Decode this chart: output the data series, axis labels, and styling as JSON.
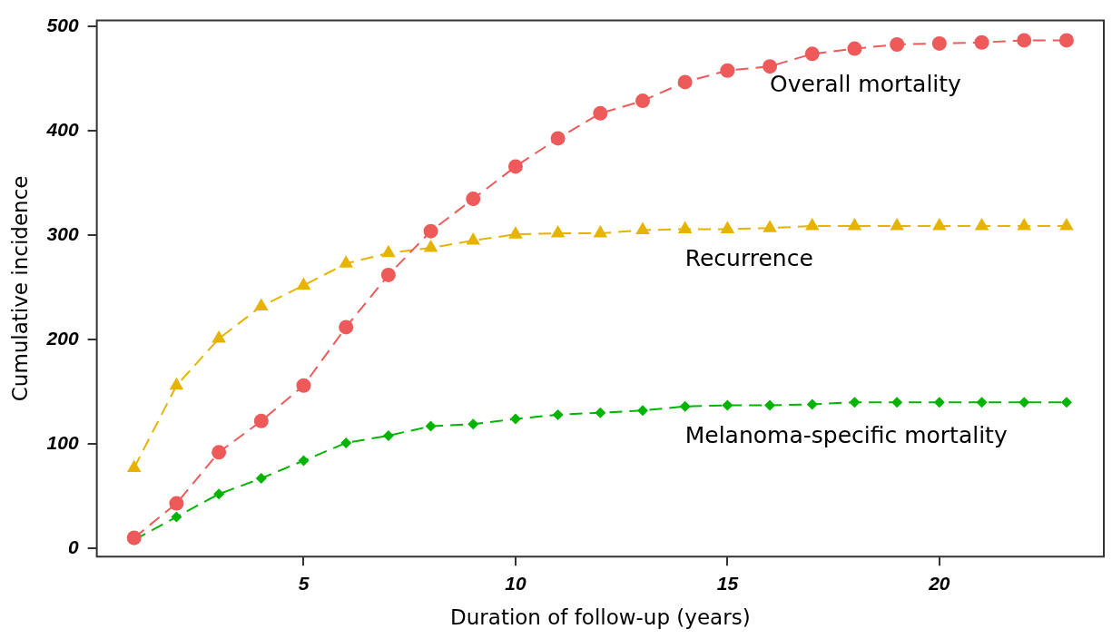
{
  "chart_data": {
    "type": "line",
    "xlabel": "Duration of follow-up (years)",
    "ylabel": "Cumulative incidence",
    "x": [
      1,
      2,
      3,
      4,
      5,
      6,
      7,
      8,
      9,
      10,
      11,
      12,
      13,
      14,
      15,
      16,
      17,
      18,
      19,
      20,
      21,
      22,
      23
    ],
    "xlim": [
      0.12,
      23.88
    ],
    "xticks": [
      5,
      10,
      15,
      20
    ],
    "ylim": [
      -8,
      506
    ],
    "yticks": [
      0,
      100,
      200,
      300,
      400,
      500
    ],
    "grid": false,
    "legend": false,
    "line_style": "dashed",
    "series": [
      {
        "name": "Overall mortality",
        "color": "#ee5a5a",
        "marker": "circle",
        "values": [
          10,
          43,
          92,
          122,
          156,
          212,
          262,
          304,
          335,
          366,
          393,
          417,
          429,
          447,
          458,
          462,
          474,
          479,
          483,
          484,
          485,
          487,
          487
        ]
      },
      {
        "name": "Recurrence",
        "color": "#e6b400",
        "marker": "triangle",
        "values": [
          77,
          156,
          201,
          232,
          252,
          273,
          283,
          288,
          295,
          301,
          302,
          302,
          305,
          306,
          306,
          307,
          309,
          309,
          309,
          309,
          309,
          309,
          309
        ]
      },
      {
        "name": "Melanoma-specific mortality",
        "color": "#00b400",
        "marker": "diamond",
        "values": [
          8,
          30,
          52,
          67,
          84,
          101,
          108,
          117,
          119,
          124,
          128,
          130,
          132,
          136,
          137,
          137,
          138,
          140,
          140,
          140,
          140,
          140,
          140
        ]
      }
    ]
  }
}
